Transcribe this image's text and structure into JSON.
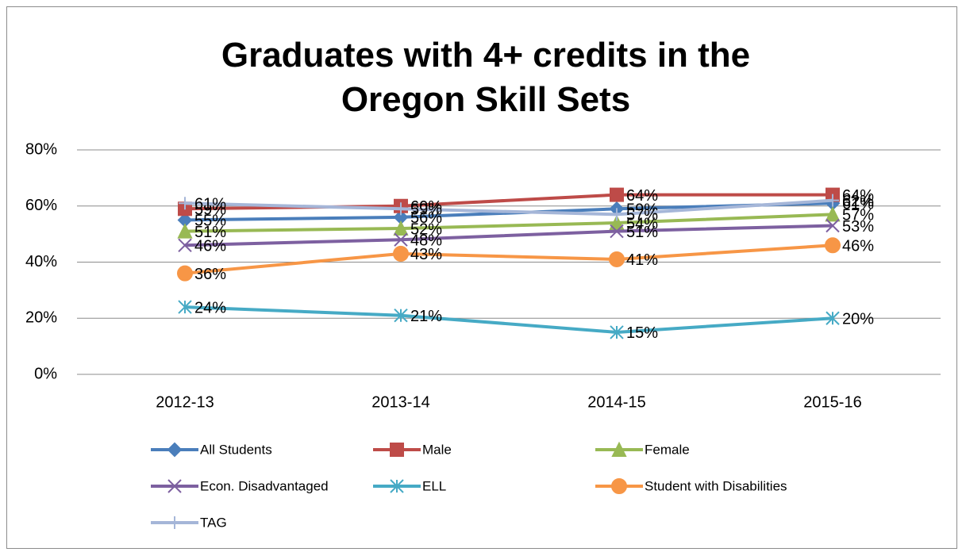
{
  "chart_data": {
    "type": "line",
    "title": "Graduates with 4+ credits in the Oregon Skill Sets",
    "categories": [
      "2012-13",
      "2013-14",
      "2014-15",
      "2015-16"
    ],
    "ylim": [
      0,
      80
    ],
    "yticks": [
      {
        "value": 0,
        "label": "0%"
      },
      {
        "value": 20,
        "label": "20%"
      },
      {
        "value": 40,
        "label": "40%"
      },
      {
        "value": 60,
        "label": "60%"
      },
      {
        "value": 80,
        "label": "80%"
      }
    ],
    "grid": true,
    "series": [
      {
        "name": "All Students",
        "color": "#4a7ebb",
        "marker": "diamond",
        "values": [
          55,
          56,
          59,
          61
        ],
        "value_labels": [
          "55%",
          "56%",
          "59%",
          "61%"
        ]
      },
      {
        "name": "Male",
        "color": "#be4b48",
        "marker": "square",
        "values": [
          59,
          60,
          64,
          64
        ],
        "value_labels": [
          "59%",
          "60%",
          "64%",
          "64%"
        ]
      },
      {
        "name": "Female",
        "color": "#98b954",
        "marker": "triangle",
        "values": [
          51,
          52,
          54,
          57
        ],
        "value_labels": [
          "51%",
          "52%",
          "54%",
          "57%"
        ]
      },
      {
        "name": "Econ. Disadvantaged",
        "color": "#7d60a0",
        "marker": "x",
        "values": [
          46,
          48,
          51,
          53
        ],
        "value_labels": [
          "46%",
          "48%",
          "51%",
          "53%"
        ]
      },
      {
        "name": "ELL",
        "color": "#46aac5",
        "marker": "star",
        "values": [
          24,
          21,
          15,
          20
        ],
        "value_labels": [
          "24%",
          "21%",
          "15%",
          "20%"
        ]
      },
      {
        "name": "Student with Disabilities",
        "color": "#f79646",
        "marker": "circle",
        "values": [
          36,
          43,
          41,
          46
        ],
        "value_labels": [
          "36%",
          "43%",
          "41%",
          "46%"
        ]
      },
      {
        "name": "TAG",
        "color": "#a5b6d8",
        "marker": "plus",
        "values": [
          61,
          59,
          57,
          62
        ],
        "value_labels": [
          "61%",
          "59%",
          "57%",
          "62%"
        ]
      }
    ]
  }
}
